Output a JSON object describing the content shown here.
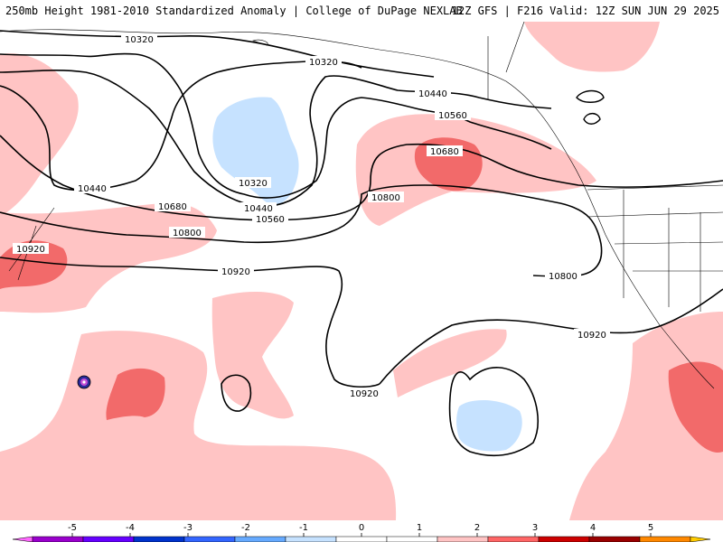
{
  "header": {
    "title": "250mb Height 1981-2010 Standardized Anomaly | College of DuPage NEXLAB",
    "run_info": "12Z GFS | F216 Valid: 12Z SUN JUN 29 2025"
  },
  "contour_labels": [
    "10320",
    "10320",
    "10320",
    "10440",
    "10440",
    "10440",
    "10560",
    "10560",
    "10680",
    "10680",
    "10800",
    "10800",
    "10800",
    "10920",
    "10920",
    "10920",
    "10920"
  ],
  "colorbar": {
    "ticks": [
      "-5",
      "-4",
      "-3",
      "-2",
      "-1",
      "0",
      "1",
      "2",
      "3",
      "4",
      "5"
    ],
    "colors": [
      "#ff66ff",
      "#9900cc",
      "#6600ff",
      "#0033cc",
      "#3366ff",
      "#66aaff",
      "#c6e2ff",
      "#ffffff",
      "#ffffff",
      "#ffc4c4",
      "#ff6666",
      "#cc0000",
      "#990000",
      "#ff8800",
      "#ffcc00"
    ]
  },
  "anomaly_colors": {
    "light_positive": "#ffc4c4",
    "medium_positive": "#f26a6a",
    "light_negative": "#c6e2ff"
  }
}
